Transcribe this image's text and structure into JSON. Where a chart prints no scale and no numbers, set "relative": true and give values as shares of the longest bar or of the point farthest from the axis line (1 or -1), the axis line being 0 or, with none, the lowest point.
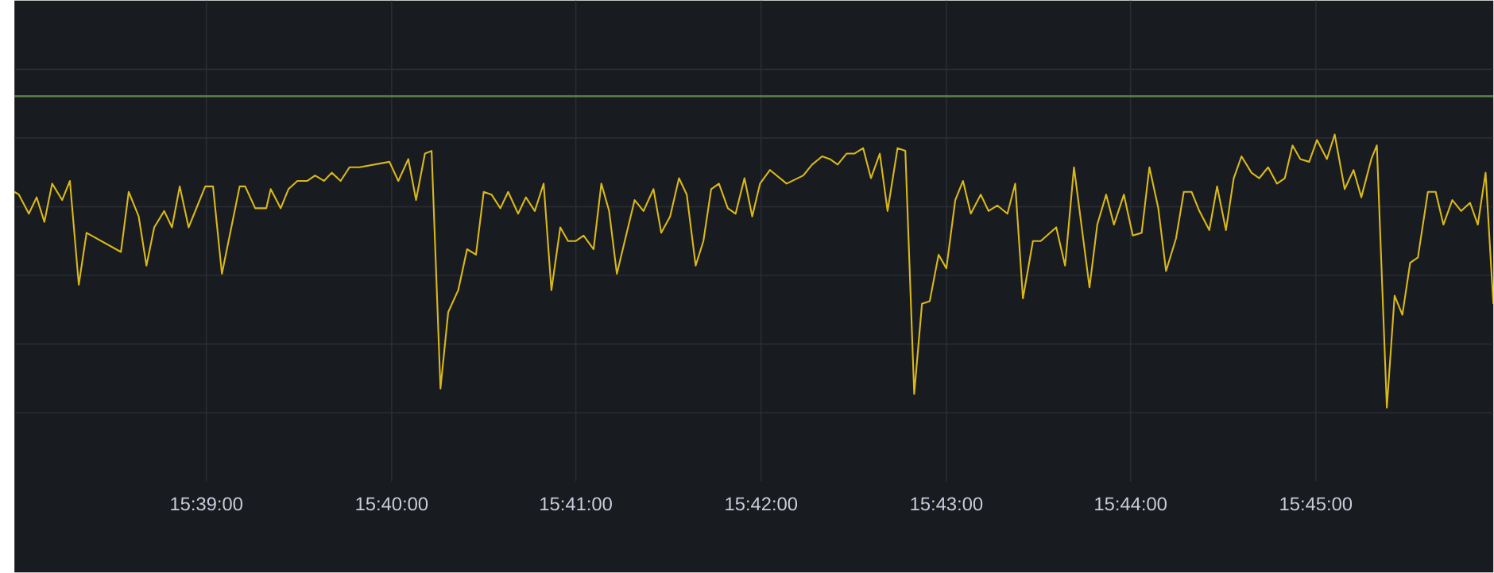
{
  "chart_data": {
    "type": "line",
    "relative": true,
    "grid": true,
    "tick_labels": "x",
    "marker": "none",
    "xlim": [
      15.6327,
      15.766
    ],
    "xticks": [
      {
        "value": 15.65,
        "label": "15:39:00"
      },
      {
        "value": 15.6667,
        "label": "15:40:00"
      },
      {
        "value": 15.6833,
        "label": "15:41:00"
      },
      {
        "value": 15.7,
        "label": "15:42:00"
      },
      {
        "value": 15.7167,
        "label": "15:43:00"
      },
      {
        "value": 15.7333,
        "label": "15:44:00"
      },
      {
        "value": 15.75,
        "label": "15:45:00"
      }
    ],
    "ref_lines": [
      {
        "axis": "y",
        "value": 1.14,
        "color": "#56804a"
      }
    ],
    "x": [
      15.6327,
      15.6331,
      15.634,
      15.6347,
      15.6354,
      15.6361,
      15.637,
      15.6377,
      15.6385,
      15.6392,
      15.6423,
      15.643,
      15.6439,
      15.6446,
      15.6453,
      15.6462,
      15.6469,
      15.6476,
      15.6484,
      15.6499,
      15.6506,
      15.6514,
      15.653,
      15.6535,
      15.6544,
      15.6554,
      15.6558,
      15.6567,
      15.6574,
      15.6582,
      15.6591,
      15.6598,
      15.6606,
      15.6613,
      15.6621,
      15.6629,
      15.6638,
      15.6665,
      15.6673,
      15.6682,
      15.6689,
      15.6697,
      15.6703,
      15.6711,
      15.6718,
      15.6727,
      15.6735,
      15.6743,
      15.675,
      15.6757,
      15.6765,
      15.6772,
      15.6781,
      15.6788,
      15.6796,
      15.6804,
      15.6811,
      15.6819,
      15.6826,
      15.6833,
      15.684,
      15.6849,
      15.6856,
      15.6863,
      15.687,
      15.6886,
      15.6894,
      15.6903,
      15.691,
      15.6918,
      15.6926,
      15.6933,
      15.6941,
      15.6948,
      15.6955,
      15.6962,
      15.697,
      15.6977,
      15.6985,
      15.6992,
      15.6999,
      15.7008,
      15.7023,
      15.7038,
      15.7046,
      15.7055,
      15.7062,
      15.7069,
      15.7077,
      15.7084,
      15.7092,
      15.7099,
      15.7107,
      15.7114,
      15.7123,
      15.713,
      15.7138,
      15.7145,
      15.7152,
      15.716,
      15.7167,
      15.7175,
      15.7182,
      15.7189,
      15.7198,
      15.7205,
      15.7213,
      15.7222,
      15.7229,
      15.7236,
      15.7245,
      15.7252,
      15.7266,
      15.7274,
      15.7282,
      15.7296,
      15.7303,
      15.7311,
      15.7318,
      15.7327,
      15.7335,
      15.7343,
      15.735,
      15.7358,
      15.7365,
      15.7374,
      15.7381,
      15.7388,
      15.7395,
      15.7404,
      15.7411,
      15.7419,
      15.7426,
      15.7433,
      15.7442,
      15.7449,
      15.7457,
      15.7465,
      15.7472,
      15.7479,
      15.7486,
      15.7494,
      15.7501,
      15.751,
      15.7517,
      15.7526,
      15.7534,
      15.7541,
      15.755,
      15.7555,
      15.7564,
      15.7571,
      15.7578,
      15.7585,
      15.7592,
      15.7601,
      15.7608,
      15.7615,
      15.7623,
      15.7631,
      15.7639,
      15.7646,
      15.7653,
      15.766
    ],
    "series": [
      {
        "color": "#d9b81a",
        "values": [
          0.79,
          0.78,
          0.71,
          0.77,
          0.68,
          0.82,
          0.76,
          0.83,
          0.45,
          0.64,
          0.57,
          0.79,
          0.7,
          0.52,
          0.66,
          0.72,
          0.66,
          0.81,
          0.66,
          0.81,
          0.81,
          0.49,
          0.81,
          0.81,
          0.73,
          0.73,
          0.8,
          0.73,
          0.8,
          0.83,
          0.83,
          0.85,
          0.83,
          0.86,
          0.83,
          0.88,
          0.88,
          0.9,
          0.83,
          0.91,
          0.76,
          0.93,
          0.94,
          0.07,
          0.35,
          0.43,
          0.58,
          0.56,
          0.79,
          0.78,
          0.73,
          0.79,
          0.71,
          0.77,
          0.72,
          0.82,
          0.43,
          0.66,
          0.61,
          0.61,
          0.63,
          0.58,
          0.82,
          0.72,
          0.49,
          0.76,
          0.72,
          0.8,
          0.64,
          0.7,
          0.84,
          0.78,
          0.52,
          0.61,
          0.8,
          0.82,
          0.73,
          0.71,
          0.84,
          0.7,
          0.82,
          0.87,
          0.82,
          0.85,
          0.89,
          0.92,
          0.91,
          0.89,
          0.93,
          0.93,
          0.95,
          0.84,
          0.93,
          0.72,
          0.95,
          0.94,
          0.05,
          0.38,
          0.39,
          0.56,
          0.51,
          0.76,
          0.83,
          0.71,
          0.78,
          0.72,
          0.74,
          0.71,
          0.82,
          0.4,
          0.61,
          0.61,
          0.66,
          0.52,
          0.88,
          0.44,
          0.67,
          0.78,
          0.67,
          0.78,
          0.63,
          0.64,
          0.88,
          0.73,
          0.5,
          0.62,
          0.79,
          0.79,
          0.72,
          0.65,
          0.81,
          0.65,
          0.84,
          0.92,
          0.86,
          0.84,
          0.88,
          0.82,
          0.84,
          0.96,
          0.91,
          0.9,
          0.98,
          0.91,
          1.0,
          0.8,
          0.87,
          0.77,
          0.91,
          0.96,
          0,
          0.41,
          0.34,
          0.53,
          0.55,
          0.79,
          0.79,
          0.67,
          0.76,
          0.72,
          0.75,
          0.67,
          0.86,
          0.38
        ]
      }
    ]
  }
}
